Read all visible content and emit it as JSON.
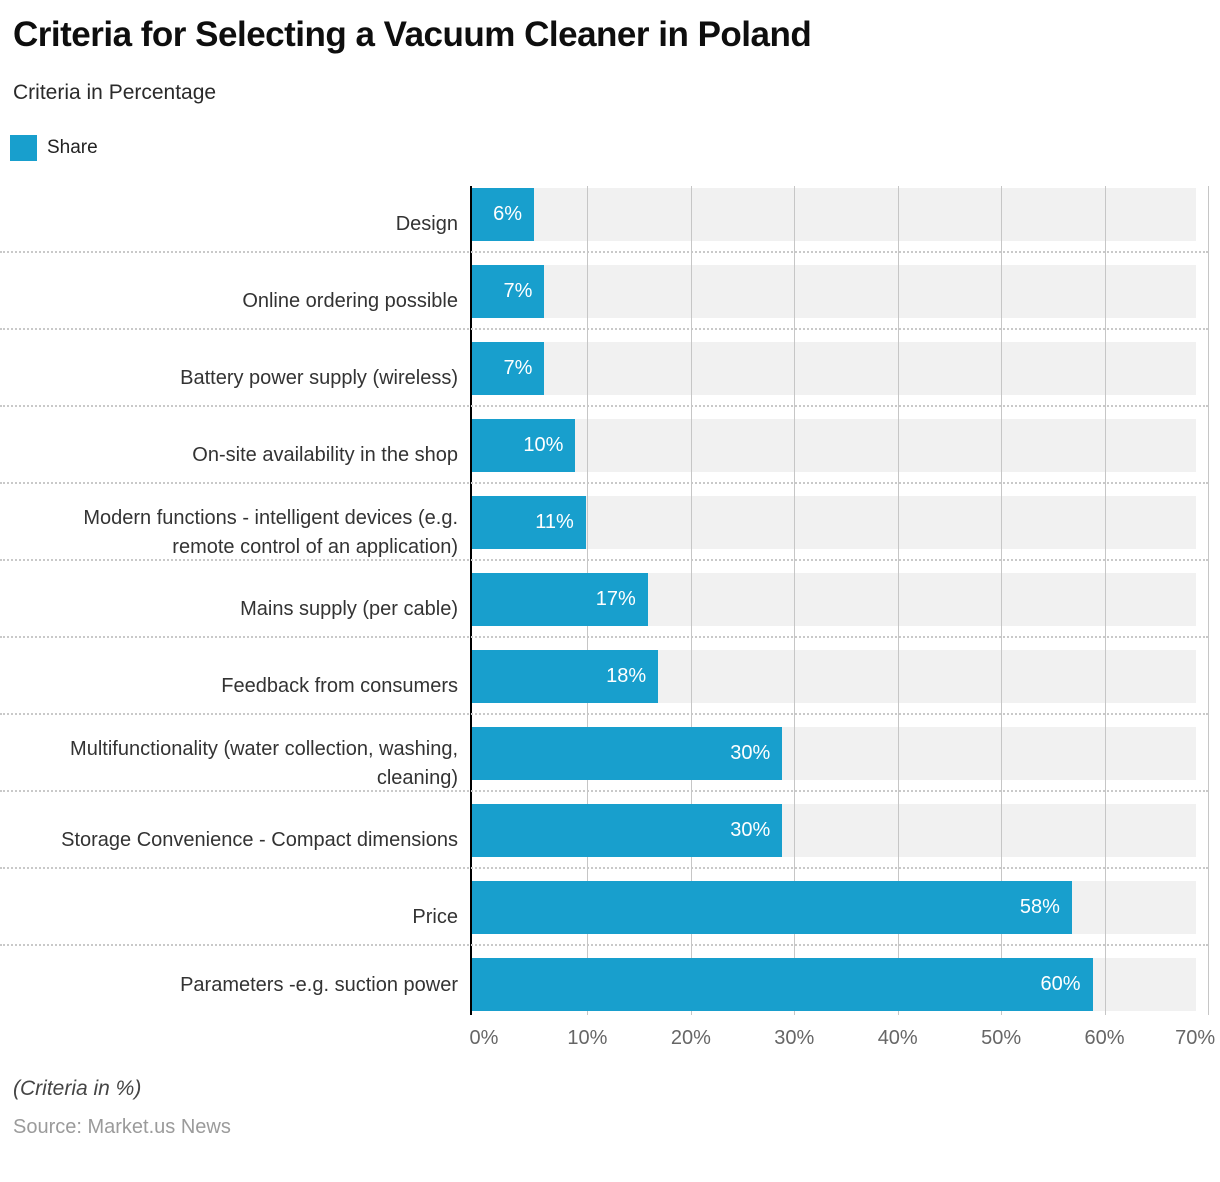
{
  "title": "Criteria for Selecting a Vacuum Cleaner in Poland",
  "subtitle": "Criteria in Percentage",
  "legend": {
    "label": "Share",
    "color": "#189fcd"
  },
  "chart_data": {
    "type": "bar",
    "orientation": "horizontal",
    "series_name": "Share",
    "categories": [
      "Design",
      "Online ordering possible",
      "Battery power supply (wireless)",
      "On-site availability in the shop",
      "Modern functions - intelligent devices (e.g. remote control of an application)",
      "Mains supply (per cable)",
      "Feedback from consumers",
      "Multifunctionality (water collection, washing, cleaning)",
      "Storage Convenience - Compact dimensions",
      "Price",
      "Parameters -e.g. suction power"
    ],
    "values": [
      6,
      7,
      7,
      10,
      11,
      17,
      18,
      30,
      30,
      58,
      60
    ],
    "value_labels": [
      "6%",
      "7%",
      "7%",
      "10%",
      "11%",
      "17%",
      "18%",
      "30%",
      "30%",
      "58%",
      "60%"
    ],
    "x_ticks": [
      "0%",
      "10%",
      "20%",
      "30%",
      "40%",
      "50%",
      "60%",
      "70%"
    ],
    "xlim": [
      0,
      70
    ],
    "xlabel": "",
    "ylabel": "",
    "grid": "vertical",
    "legend_position": "top-left",
    "bar_color": "#189fcd",
    "band_color": "#f1f1f1"
  },
  "footer": {
    "note": "(Criteria in %)",
    "source": "Source: Market.us News"
  }
}
